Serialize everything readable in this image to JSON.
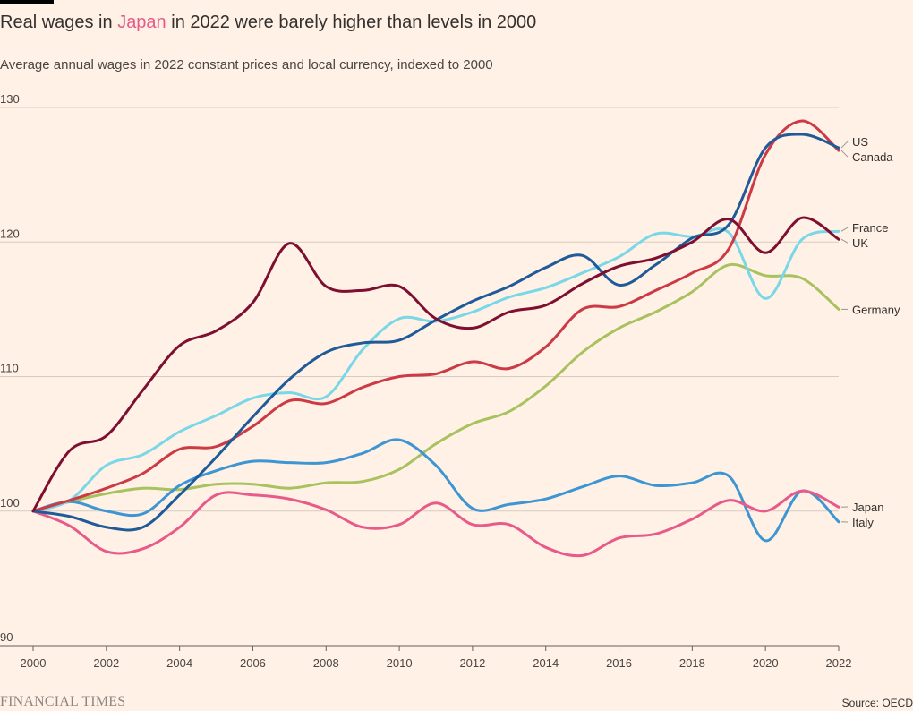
{
  "header": {
    "title_prefix": "Real wages in ",
    "title_highlight": "Japan",
    "title_suffix": " in 2022 were barely higher than levels in 2000",
    "subtitle": "Average annual wages in 2022 constant prices and local currency, indexed to 2000"
  },
  "footer": {
    "brand": "FINANCIAL TIMES",
    "source": "Source: OECD"
  },
  "colors": {
    "highlight": "#e75a8a",
    "background": "#fff1e5"
  },
  "chart_data": {
    "type": "line",
    "title": "Real wages in Japan in 2022 were barely higher than levels in 2000",
    "subtitle": "Average annual wages in 2022 constant prices and local currency, indexed to 2000",
    "xlim": [
      2000,
      2022
    ],
    "ylim": [
      90,
      130
    ],
    "yticks": [
      90,
      100,
      110,
      120,
      130
    ],
    "xticks": [
      2000,
      2002,
      2004,
      2006,
      2008,
      2010,
      2012,
      2014,
      2016,
      2018,
      2020,
      2022
    ],
    "grid": true,
    "legend": "right-end labels",
    "x": [
      2000,
      2001,
      2002,
      2003,
      2004,
      2005,
      2006,
      2007,
      2008,
      2009,
      2010,
      2011,
      2012,
      2013,
      2014,
      2015,
      2016,
      2017,
      2018,
      2019,
      2020,
      2021,
      2022
    ],
    "series": [
      {
        "name": "Canada",
        "color": "#cc3a45",
        "values": [
          100,
          100.8,
          101.7,
          102.8,
          104.6,
          104.8,
          106.3,
          108.2,
          108.0,
          109.2,
          110.0,
          110.2,
          111.1,
          110.6,
          112.2,
          115.0,
          115.2,
          116.4,
          117.7,
          119.5,
          126.5,
          129.0,
          126.8
        ]
      },
      {
        "name": "US",
        "color": "#1f5a99",
        "values": [
          100,
          99.6,
          98.8,
          98.8,
          101.2,
          104.0,
          107.0,
          109.8,
          111.8,
          112.5,
          112.7,
          114.2,
          115.6,
          116.7,
          118.1,
          119.0,
          116.8,
          118.3,
          120.3,
          121.3,
          127.0,
          128.0,
          127.0
        ]
      },
      {
        "name": "France",
        "color": "#7ad7e8",
        "values": [
          100,
          100.8,
          103.4,
          104.2,
          105.9,
          107.1,
          108.4,
          108.8,
          108.5,
          112.0,
          114.3,
          114.1,
          114.8,
          115.9,
          116.6,
          117.7,
          118.9,
          120.6,
          120.4,
          120.7,
          115.8,
          120.2,
          120.8
        ]
      },
      {
        "name": "UK",
        "color": "#7d1030",
        "values": [
          100,
          104.5,
          105.6,
          109.0,
          112.3,
          113.4,
          115.5,
          119.9,
          116.7,
          116.4,
          116.7,
          114.3,
          113.6,
          114.8,
          115.3,
          116.9,
          118.2,
          118.8,
          120.0,
          121.7,
          119.2,
          121.8,
          120.2
        ]
      },
      {
        "name": "Germany",
        "color": "#a7c25e",
        "values": [
          100,
          100.7,
          101.3,
          101.7,
          101.6,
          102.0,
          102.0,
          101.7,
          102.1,
          102.2,
          103.1,
          105.0,
          106.5,
          107.4,
          109.3,
          111.8,
          113.6,
          114.8,
          116.3,
          118.3,
          117.5,
          117.3,
          115.0
        ]
      },
      {
        "name": "Japan",
        "color": "#e75a8a",
        "values": [
          100,
          98.9,
          97.0,
          97.2,
          98.8,
          101.2,
          101.2,
          100.9,
          100.1,
          98.8,
          99.0,
          100.6,
          99.0,
          99.0,
          97.3,
          96.7,
          98.0,
          98.3,
          99.4,
          100.8,
          100.0,
          101.5,
          100.3
        ]
      },
      {
        "name": "Italy",
        "color": "#3d95d3",
        "values": [
          100,
          100.7,
          100.0,
          99.8,
          101.9,
          103.0,
          103.7,
          103.6,
          103.6,
          104.3,
          105.3,
          103.4,
          100.2,
          100.5,
          100.9,
          101.8,
          102.6,
          101.9,
          102.1,
          102.6,
          97.8,
          101.5,
          99.2
        ]
      }
    ]
  }
}
